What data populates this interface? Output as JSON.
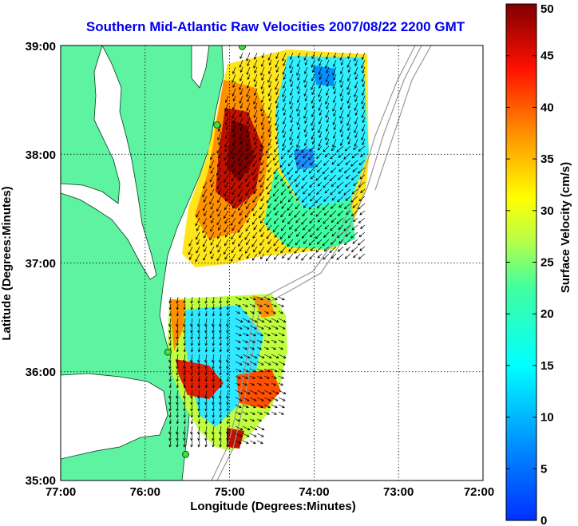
{
  "chart_data": {
    "type": "heatmap",
    "title": "Southern Mid-Atlantic Raw Velocities 2007/08/22 2200 GMT",
    "xlabel": "Longitude (Degrees:Minutes)",
    "ylabel": "Latitude (Degrees:Minutes)",
    "x_ticks": [
      "77:00",
      "76:00",
      "75:00",
      "74:00",
      "73:00",
      "72:00"
    ],
    "y_ticks": [
      "39:00",
      "38:00",
      "37:00",
      "36:00",
      "35:00"
    ],
    "x_tick_values": [
      -77,
      -76,
      -75,
      -74,
      -73,
      -72
    ],
    "y_tick_values": [
      39,
      38,
      37,
      36,
      35
    ],
    "xlim": [
      -77,
      -72
    ],
    "ylim": [
      35,
      39
    ],
    "grid": true,
    "colorbar": {
      "label": "Surface Velocity (cm/s)",
      "ticks": [
        "50",
        "45",
        "40",
        "35",
        "30",
        "25",
        "20",
        "15",
        "10",
        "5",
        "0"
      ],
      "tick_values": [
        50,
        45,
        40,
        35,
        30,
        25,
        20,
        15,
        10,
        5,
        0
      ],
      "range": [
        0,
        50
      ],
      "colormap": "jet"
    },
    "stations": [
      {
        "lon": -74.85,
        "lat": 38.99
      },
      {
        "lon": -75.15,
        "lat": 38.27
      },
      {
        "lon": -75.73,
        "lat": 36.18
      },
      {
        "lon": -75.52,
        "lat": 35.24
      }
    ],
    "colors": {
      "land": "#5ef3a0",
      "ocean": "#ffffff",
      "title": "#0000ee"
    }
  }
}
